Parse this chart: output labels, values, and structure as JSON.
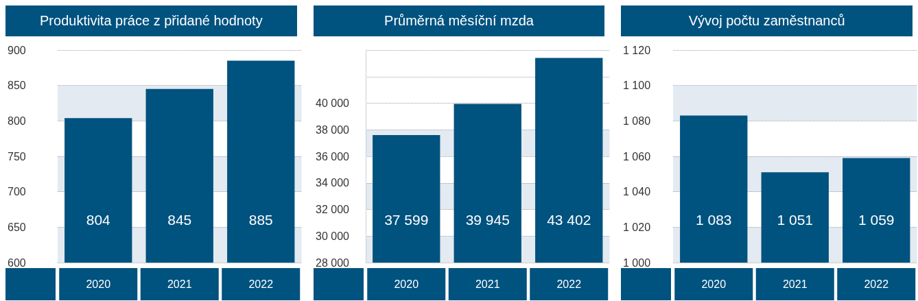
{
  "chart_data": [
    {
      "type": "bar",
      "title": "Produktivita práce z přidané hodnoty",
      "categories": [
        "2020",
        "2021",
        "2022"
      ],
      "values": [
        804,
        845,
        885
      ],
      "value_labels": [
        "804",
        "845",
        "885"
      ],
      "color": "#00527f",
      "ylim": [
        600,
        900
      ],
      "yticks": [
        600,
        650,
        700,
        750,
        800,
        850,
        900
      ],
      "grid": "y"
    },
    {
      "type": "bar",
      "title": "Průměrná měsíční mzda",
      "categories": [
        "2020",
        "2021",
        "2022"
      ],
      "values": [
        37599,
        39945,
        43402
      ],
      "value_labels": [
        "37 599",
        "39 945",
        "43 402"
      ],
      "color": "#00527f",
      "ylim": [
        28000,
        44000
      ],
      "yticks": [
        {
          "value": 28000,
          "label": "28 000"
        },
        {
          "value": 30000,
          "label": "30 000"
        },
        {
          "value": 32000,
          "label": "32 000"
        },
        {
          "value": 34000,
          "label": "34 000"
        },
        {
          "value": 36000,
          "label": "36 000"
        },
        {
          "value": 38000,
          "label": "38 000"
        },
        {
          "value": 40000,
          "label": "40 000"
        }
      ],
      "grid": "y"
    },
    {
      "type": "bar",
      "title": "Vývoj počtu zaměstnanců",
      "categories": [
        "2020",
        "2021",
        "2022"
      ],
      "values": [
        1083,
        1051,
        1059
      ],
      "value_labels": [
        "1 083",
        "1 051",
        "1 059"
      ],
      "color": "#00527f",
      "ylim": [
        1000,
        1120
      ],
      "yticks": [
        {
          "value": 1000,
          "label": "1 000"
        },
        {
          "value": 1020,
          "label": "1 020"
        },
        {
          "value": 1040,
          "label": "1 040"
        },
        {
          "value": 1060,
          "label": "1 060"
        },
        {
          "value": 1080,
          "label": "1 080"
        },
        {
          "value": 1100,
          "label": "1 100"
        },
        {
          "value": 1120,
          "label": "1 120"
        }
      ],
      "grid": "y"
    }
  ]
}
